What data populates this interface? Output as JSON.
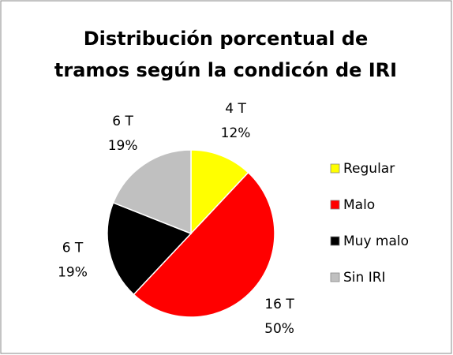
{
  "chart_data": {
    "type": "pie",
    "title": [
      "Distribución porcentual de",
      "tramos según la condicón de IRI"
    ],
    "categories": [
      "Regular",
      "Malo",
      "Muy malo",
      "Sin IRI"
    ],
    "values": [
      12,
      50,
      19,
      19
    ],
    "value_labels": [
      "12%",
      "50%",
      "19%",
      "19%"
    ],
    "count_labels": [
      "4 T",
      "16 T",
      "6 T",
      "6 T"
    ],
    "colors": [
      "#ffff00",
      "#ff0000",
      "#000000",
      "#c0c0c0"
    ],
    "legend": "right"
  }
}
